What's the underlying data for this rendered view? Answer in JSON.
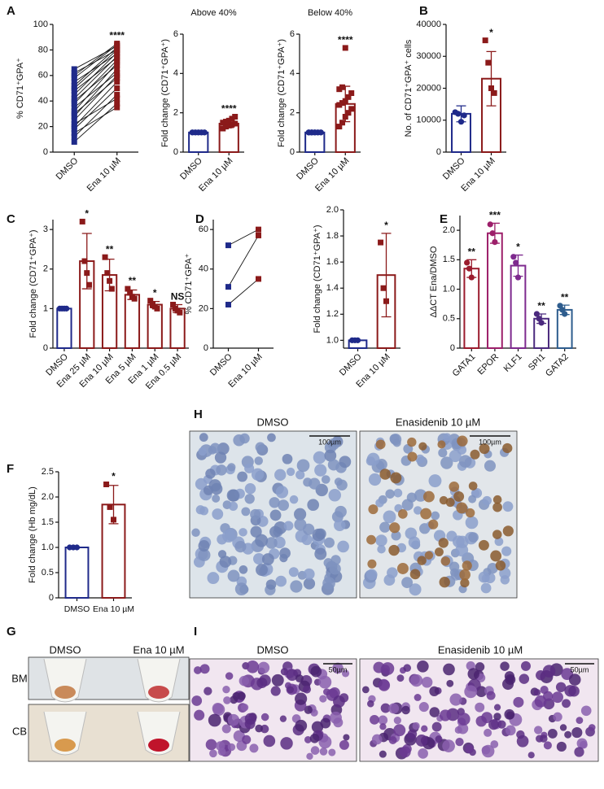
{
  "panel_labels": [
    "A",
    "B",
    "C",
    "D",
    "E",
    "F",
    "G",
    "H",
    "I"
  ],
  "chart_data": [
    {
      "type": "line",
      "ylabel": "% CD71⁺GPA⁺",
      "categories": [
        "DMSO",
        "Ena 10 µM"
      ],
      "colors": [
        "#1f2a8a",
        "#8b1a1a"
      ],
      "series": [
        {
          "values": [
            8,
            38
          ]
        },
        {
          "values": [
            12,
            45
          ]
        },
        {
          "values": [
            15,
            35
          ]
        },
        {
          "values": [
            18,
            50
          ]
        },
        {
          "values": [
            20,
            55
          ]
        },
        {
          "values": [
            22,
            42
          ]
        },
        {
          "values": [
            25,
            60
          ]
        },
        {
          "values": [
            28,
            65
          ]
        },
        {
          "values": [
            30,
            58
          ]
        },
        {
          "values": [
            32,
            70
          ]
        },
        {
          "values": [
            35,
            62
          ]
        },
        {
          "values": [
            38,
            72
          ]
        },
        {
          "values": [
            40,
            68
          ]
        },
        {
          "values": [
            42,
            75
          ]
        },
        {
          "values": [
            45,
            78
          ]
        },
        {
          "values": [
            48,
            74
          ]
        },
        {
          "values": [
            50,
            80
          ]
        },
        {
          "values": [
            52,
            82
          ]
        },
        {
          "values": [
            55,
            77
          ]
        },
        {
          "values": [
            58,
            84
          ]
        },
        {
          "values": [
            60,
            85
          ]
        },
        {
          "values": [
            62,
            80
          ]
        },
        {
          "values": [
            65,
            83
          ]
        }
      ],
      "annotations": [
        null,
        "****"
      ],
      "ylim": [
        0,
        100
      ],
      "yticks": [
        0,
        20,
        40,
        60,
        80,
        100
      ]
    },
    {
      "type": "bar",
      "title": "Above 40%",
      "ylabel": "Fold change (CD71⁺GPA⁺)",
      "categories": [
        "DMSO",
        "Ena 10 µM"
      ],
      "colors": [
        "#1f2a8a",
        "#8b1a1a"
      ],
      "markers": [
        "circle",
        "square"
      ],
      "values": [
        1,
        1.45
      ],
      "errors": [
        null,
        0.2
      ],
      "points": [
        [
          1,
          1,
          1,
          1,
          1,
          1,
          1,
          1,
          1,
          1
        ],
        [
          1.2,
          1.3,
          1.35,
          1.4,
          1.45,
          1.5,
          1.55,
          1.6,
          1.7,
          1.8
        ]
      ],
      "annotations": [
        null,
        "****"
      ],
      "ylim": [
        0,
        6
      ],
      "yticks": [
        0,
        2,
        4,
        6
      ]
    },
    {
      "type": "bar",
      "title": "Below 40%",
      "ylabel": "Fold change (CD71⁺GPA⁺)",
      "categories": [
        "DMSO",
        "Ena 10 µM"
      ],
      "colors": [
        "#1f2a8a",
        "#8b1a1a"
      ],
      "markers": [
        "circle",
        "square"
      ],
      "values": [
        1,
        2.45
      ],
      "errors": [
        null,
        0.9
      ],
      "points": [
        [
          1,
          1,
          1,
          1,
          1,
          1,
          1,
          1,
          1,
          1,
          1,
          1,
          1
        ],
        [
          1.3,
          1.5,
          1.8,
          2.0,
          2.2,
          2.4,
          2.5,
          2.6,
          2.8,
          3.0,
          3.2,
          3.3,
          5.3
        ]
      ],
      "annotations": [
        null,
        "****"
      ],
      "ylim": [
        0,
        6
      ],
      "yticks": [
        0,
        2,
        4,
        6
      ]
    },
    {
      "type": "bar",
      "ylabel": "No. of CD71⁺GPA⁺ cells",
      "categories": [
        "DMSO",
        "Ena 10 µM"
      ],
      "colors": [
        "#1f2a8a",
        "#8b1a1a"
      ],
      "markers": [
        "circle",
        "square"
      ],
      "values": [
        12000,
        23000
      ],
      "errors": [
        2500,
        8500
      ],
      "points": [
        [
          12500,
          12000,
          9500,
          11500
        ],
        [
          35000,
          28000,
          20000,
          18500
        ]
      ],
      "annotations": [
        null,
        "*"
      ],
      "ylim": [
        0,
        40000
      ],
      "yticks": [
        0,
        10000,
        20000,
        30000,
        40000
      ]
    },
    {
      "type": "bar",
      "ylabel": "Fold change (CD71⁺GPA⁺)",
      "categories": [
        "DMSO",
        "Ena 25 µM",
        "Ena 10 µM",
        "Ena 5 µM",
        "Ena 1 µM",
        "Ena 0.5 µM"
      ],
      "colors": [
        "#1f2a8a",
        "#8b1a1a",
        "#8b1a1a",
        "#8b1a1a",
        "#8b1a1a",
        "#8b1a1a"
      ],
      "markers": [
        "circle",
        "square",
        "square",
        "square",
        "square",
        "square"
      ],
      "values": [
        1,
        2.2,
        1.85,
        1.35,
        1.1,
        1.0
      ],
      "errors": [
        null,
        0.7,
        0.4,
        0.12,
        0.08,
        0.1
      ],
      "points": [
        [
          1,
          1,
          1,
          1
        ],
        [
          3.2,
          2.2,
          1.9,
          1.6
        ],
        [
          2.3,
          1.9,
          1.7,
          1.5
        ],
        [
          1.5,
          1.4,
          1.3,
          1.25
        ],
        [
          1.2,
          1.1,
          1.05,
          1.0
        ],
        [
          1.1,
          1.0,
          0.95,
          0.9
        ]
      ],
      "annotations": [
        null,
        "*",
        "**",
        "**",
        "*",
        "NS"
      ],
      "ylim": [
        0,
        3.25
      ],
      "yticks": [
        0,
        1,
        2,
        3
      ]
    },
    {
      "type": "line",
      "ylabel": "% CD71⁺GPA⁺",
      "categories": [
        "DMSO",
        "Ena 10 µM"
      ],
      "colors": [
        "#1f2a8a",
        "#8b1a1a"
      ],
      "series": [
        {
          "values": [
            52,
            60
          ]
        },
        {
          "values": [
            31,
            57
          ]
        },
        {
          "values": [
            22,
            35
          ]
        }
      ],
      "annotations": [
        null,
        null
      ],
      "ylim": [
        0,
        65
      ],
      "yticks": [
        0,
        20,
        40,
        60
      ]
    },
    {
      "type": "bar",
      "ylabel": "Fold change (CD71⁺GPA⁺)",
      "categories": [
        "DMSO",
        "Ena 10 µM"
      ],
      "colors": [
        "#1f2a8a",
        "#8b1a1a"
      ],
      "markers": [
        "circle",
        "square"
      ],
      "values": [
        1,
        1.5
      ],
      "errors": [
        null,
        0.32
      ],
      "points": [
        [
          1,
          1,
          1
        ],
        [
          1.75,
          1.4,
          1.3
        ]
      ],
      "annotations": [
        null,
        "*"
      ],
      "ylim": [
        0.94,
        2.0
      ],
      "yticks": [
        {
          "value": 1,
          "label": "1.0"
        },
        1.2,
        1.4,
        1.6,
        1.8,
        {
          "value": 2,
          "label": "2.0"
        }
      ]
    },
    {
      "type": "bar",
      "ylabel": "ΔΔCT Ena/DMSO",
      "categories": [
        "GATA1",
        "EPOR",
        "KLF1",
        "SPI1",
        "GATA2"
      ],
      "colors": [
        "#9b1c2e",
        "#9c1f6a",
        "#7e2a8e",
        "#4b2a7e",
        "#2e5d8e"
      ],
      "markers": [
        "circle",
        "circle",
        "circle",
        "circle",
        "circle"
      ],
      "values": [
        1.35,
        1.95,
        1.4,
        0.5,
        0.65
      ],
      "errors": [
        0.15,
        0.17,
        0.18,
        0.08,
        0.08
      ],
      "points": [
        [
          1.45,
          1.35,
          1.2
        ],
        [
          2.1,
          1.95,
          1.8
        ],
        [
          1.55,
          1.45,
          1.2
        ],
        [
          0.58,
          0.5,
          0.43
        ],
        [
          0.72,
          0.65,
          0.58
        ]
      ],
      "annotations": [
        "**",
        "***",
        "*",
        "**",
        "**"
      ],
      "ylim": [
        0,
        2.25
      ],
      "yticks": [
        0,
        0.5,
        {
          "value": 1,
          "label": "1.0"
        },
        1.5,
        {
          "value": 2,
          "label": "2.0"
        }
      ]
    },
    {
      "type": "bar",
      "ylabel": "Fold change (Hb mg/dL)",
      "categories": [
        "DMSO",
        "Ena 10 µM"
      ],
      "colors": [
        "#1f2a8a",
        "#8b1a1a"
      ],
      "markers": [
        "circle",
        "square"
      ],
      "values": [
        1,
        1.85
      ],
      "errors": [
        null,
        0.38
      ],
      "points": [
        [
          1,
          1,
          1
        ],
        [
          2.25,
          1.8,
          1.55
        ]
      ],
      "annotations": [
        null,
        "*"
      ],
      "ylim": [
        0,
        2.5
      ],
      "yticks": [
        0,
        0.5,
        {
          "value": 1,
          "label": "1.0"
        },
        1.5,
        {
          "value": 2,
          "label": "2.0"
        },
        2.5
      ]
    }
  ],
  "photos": {
    "G": {
      "columns": [
        "DMSO",
        "Ena 10 µM"
      ],
      "rows": [
        "BM",
        "CB"
      ]
    },
    "H": {
      "columns": [
        "DMSO",
        "Enasidenib 10 µM"
      ],
      "scale_bar": "100µm"
    },
    "I": {
      "columns": [
        "DMSO",
        "Enasidenib 10 µM"
      ],
      "scale_bar": "50µm"
    }
  }
}
